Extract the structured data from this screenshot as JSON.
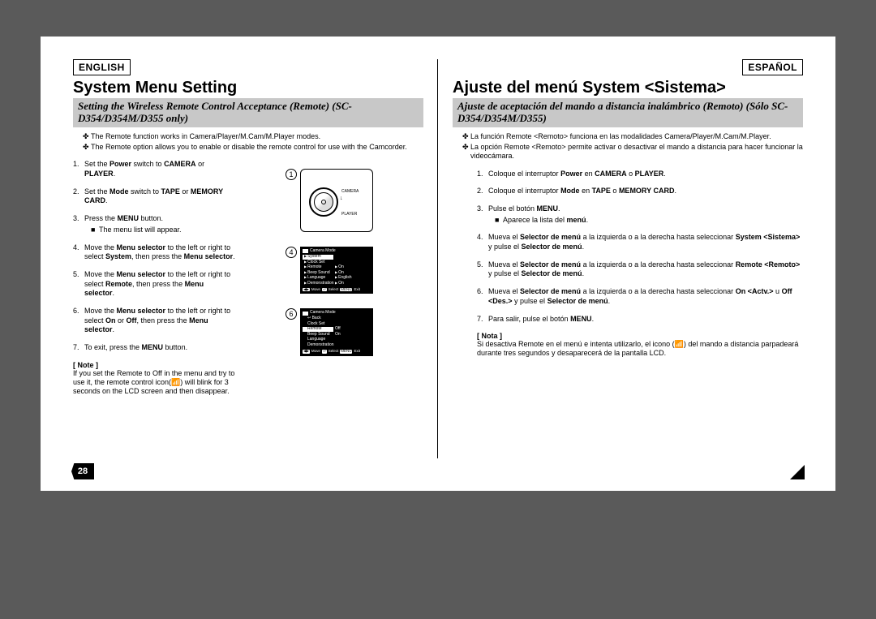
{
  "page_number": "28",
  "left": {
    "lang": "ENGLISH",
    "title": "System Menu Setting",
    "subtitle": "Setting the Wireless Remote Control Acceptance (Remote) (SC-D354/D354M/D355 only)",
    "intro": [
      "The Remote function works in Camera/Player/M.Cam/M.Player modes.",
      "The Remote option allows you to enable or disable the remote control for use with the Camcorder."
    ],
    "steps": [
      {
        "n": "1.",
        "t": "Set the <b>Power</b> switch to <b>CAMERA</b> or <b>PLAYER</b>."
      },
      {
        "n": "2.",
        "t": "Set the <b>Mode</b> switch to <b>TAPE</b> or <b>MEMORY CARD</b>."
      },
      {
        "n": "3.",
        "t": "Press the <b>MENU</b> button.",
        "sub": "The menu list will appear."
      },
      {
        "n": "4.",
        "t": "Move the <b>Menu selector</b> to the left or right to select <b>System</b>, then press the <b>Menu selector</b>."
      },
      {
        "n": "5.",
        "t": "Move the <b>Menu selector</b> to the left or right to select <b>Remote</b>, then press the <b>Menu selector</b>."
      },
      {
        "n": "6.",
        "t": "Move the <b>Menu selector</b> to the left or right to select <b>On</b> or <b>Off</b>, then press the <b>Menu selector</b>."
      },
      {
        "n": "7.",
        "t": "To exit, press the <b>MENU</b> button."
      }
    ],
    "note_label": "[ Note ]",
    "note": "If you set the Remote to Off in the menu and try to use it, the remote control icon(📶) will blink for 3 seconds on the LCD screen and then disappear."
  },
  "right": {
    "lang": "ESPAÑOL",
    "title": "Ajuste del menú System <Sistema>",
    "subtitle": "Ajuste de aceptación del mando a distancia inalámbrico (Remoto) (Sólo SC-D354/D354M/D355)",
    "intro": [
      "La función Remote <Remoto> funciona en las modalidades Camera/Player/M.Cam/M.Player.",
      "La opción Remote <Remoto> permite activar o desactivar el mando a distancia para hacer funcionar la videocámara."
    ],
    "steps": [
      {
        "n": "1.",
        "t": "Coloque el interruptor <b>Power</b> en <b>CAMERA</b> o <b>PLAYER</b>."
      },
      {
        "n": "2.",
        "t": "Coloque el interruptor <b>Mode</b> en <b>TAPE</b> o <b>MEMORY CARD</b>."
      },
      {
        "n": "3.",
        "t": "Pulse el botón <b>MENU</b>.",
        "sub": "Aparece la lista del <b>menú</b>."
      },
      {
        "n": "4.",
        "t": "Mueva el <b>Selector de menú</b> a la izquierda o a la derecha hasta seleccionar <b>System &lt;Sistema&gt;</b> y pulse el <b>Selector de menú</b>."
      },
      {
        "n": "5.",
        "t": "Mueva el <b>Selector de menú</b> a la izquierda o a la derecha hasta seleccionar <b>Remote &lt;Remoto&gt;</b> y pulse el <b>Selector de menú</b>."
      },
      {
        "n": "6.",
        "t": "Mueva el <b>Selector de menú</b> a la izquierda o a la derecha hasta seleccionar <b>On &lt;Actv.&gt;</b> u <b>Off &lt;Des.&gt;</b> y pulse el <b>Selector de menú</b>."
      },
      {
        "n": "7.",
        "t": "Para salir, pulse el botón <b>MENU</b>."
      }
    ],
    "note_label": "[ Nota ]",
    "note": "Si desactiva Remote en el menú e intenta utilizarlo, el icono (📶) del mando a distancia parpadeará durante tres segundos y desaparecerá de la pantalla LCD."
  },
  "fig": {
    "dial": {
      "top_label": "CAMERA",
      "bottom_label": "PLAYER"
    },
    "lcd4": {
      "header": "Camera Mode",
      "rows": [
        {
          "l": "System",
          "r": "",
          "sel": true
        },
        {
          "l": "Clock Set",
          "r": ""
        },
        {
          "l": "Remote",
          "r": "On",
          "val": true
        },
        {
          "l": "Beep Sound",
          "r": "On",
          "val": true
        },
        {
          "l": "Language",
          "r": "English",
          "val": true
        },
        {
          "l": "Demonstration",
          "r": "On",
          "val": true
        }
      ],
      "footer": [
        "Move",
        "Select",
        "Exit"
      ],
      "keys": [
        "◀▶",
        "⏎",
        "MENU"
      ]
    },
    "lcd6": {
      "header": "Camera Mode",
      "back": "Back",
      "rows": [
        {
          "l": "Clock Set",
          "r": ""
        },
        {
          "l": "Remote",
          "r": "Off",
          "sel": true,
          "rsel": false
        },
        {
          "l": "Beep Sound",
          "r": "On",
          "rsel": true
        },
        {
          "l": "Language",
          "r": ""
        },
        {
          "l": "Demonstration",
          "r": ""
        }
      ],
      "footer": [
        "Move",
        "Select",
        "Exit"
      ],
      "keys": [
        "◀▶",
        "⏎",
        "MENU"
      ]
    },
    "nums": {
      "a": "1",
      "b": "4",
      "c": "6"
    }
  }
}
